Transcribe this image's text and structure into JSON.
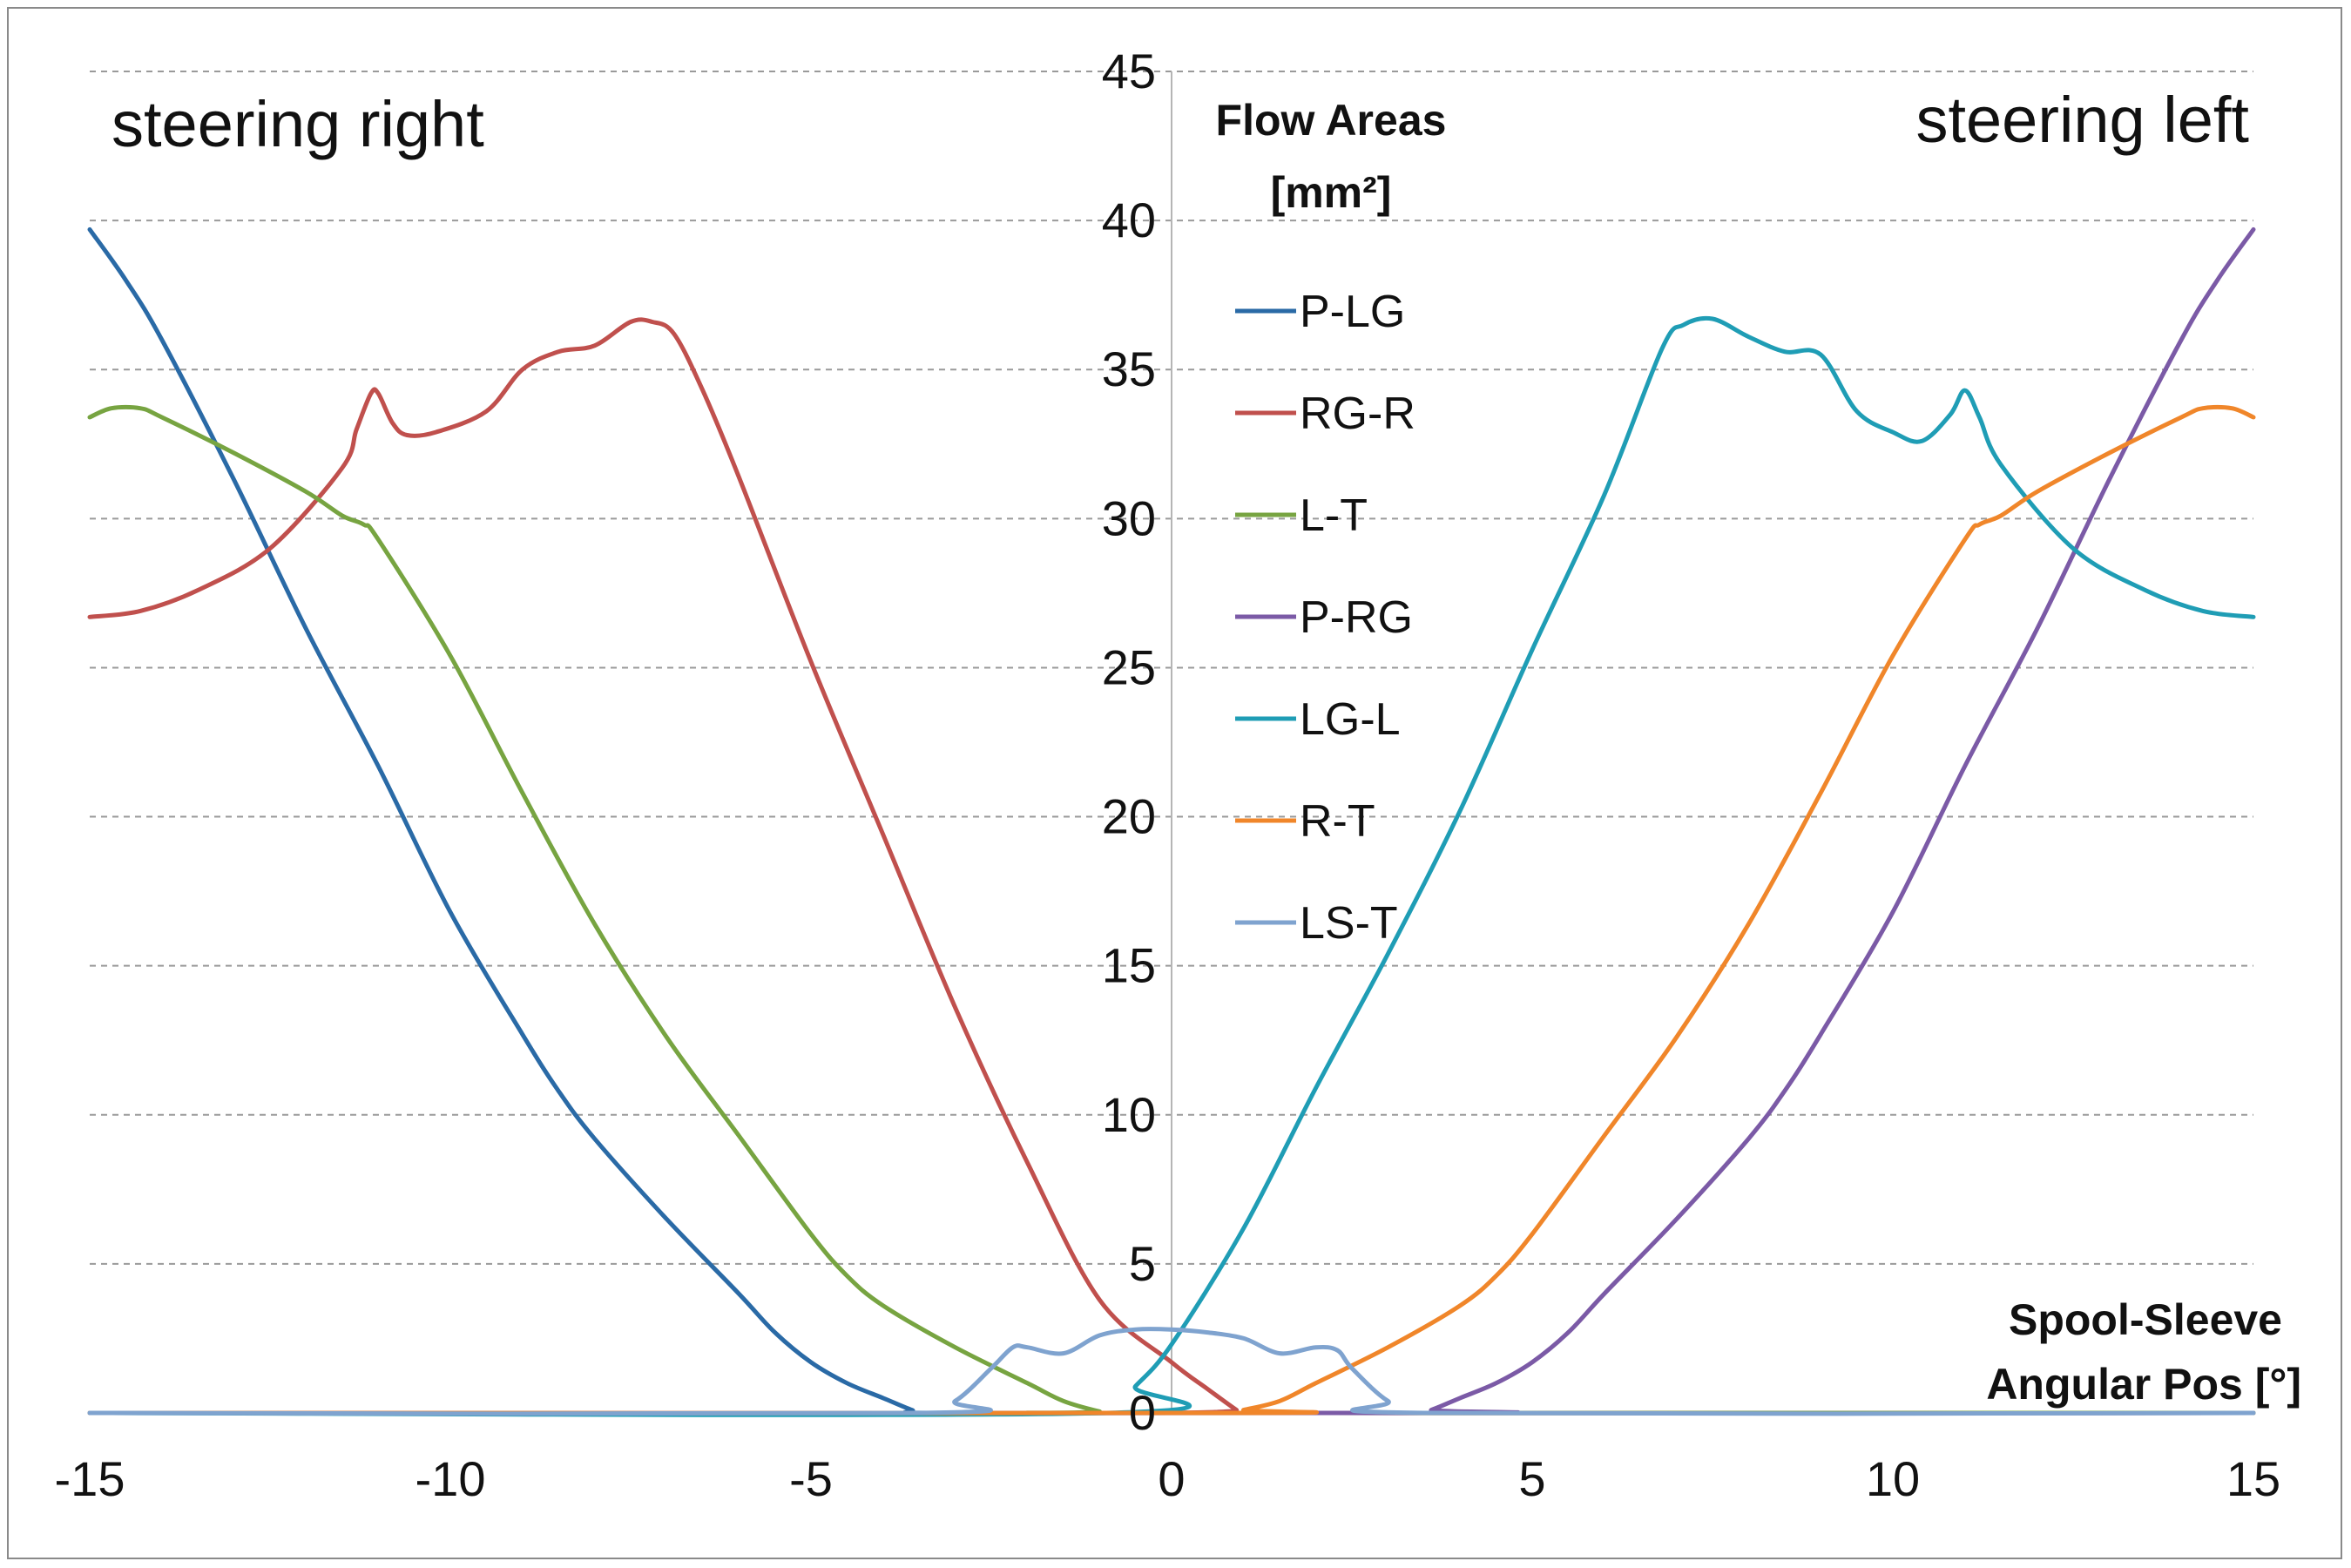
{
  "chart_data": {
    "type": "line",
    "title": "",
    "xlabel": [
      "Spool-Sleeve",
      "Angular Pos [°]"
    ],
    "ylabel": [
      "Flow Areas",
      "[mm²]"
    ],
    "xlim": [
      -15,
      15
    ],
    "ylim": [
      0,
      45
    ],
    "xticks": [
      -15,
      -10,
      -5,
      0,
      5,
      10,
      15
    ],
    "yticks": [
      0,
      5,
      10,
      15,
      20,
      25,
      30,
      35,
      40,
      45
    ],
    "grid": "horizontal dashed",
    "annotations": {
      "left": "steering right",
      "right": "steering left"
    },
    "legend_position": "center",
    "series": [
      {
        "name": "P-LG",
        "color": "#2a6aa6",
        "points": [
          [
            -15,
            39.7
          ],
          [
            -14.5,
            38
          ],
          [
            -14,
            36
          ],
          [
            -13,
            31.3
          ],
          [
            -12,
            26.3
          ],
          [
            -11,
            21.7
          ],
          [
            -10,
            16.8
          ],
          [
            -9,
            12.7
          ],
          [
            -8.5,
            10.8
          ],
          [
            -8,
            9.2
          ],
          [
            -7,
            6.5
          ],
          [
            -6,
            4.0
          ],
          [
            -5.5,
            2.7
          ],
          [
            -5,
            1.7
          ],
          [
            -4.5,
            1.0
          ],
          [
            -4,
            0.5
          ],
          [
            -3.6,
            0.1
          ],
          [
            -3.4,
            0
          ],
          [
            0,
            0
          ],
          [
            15,
            0
          ]
        ]
      },
      {
        "name": "RG-R",
        "color": "#c0504d",
        "points": [
          [
            -15,
            26.7
          ],
          [
            -14.3,
            26.9
          ],
          [
            -13.5,
            27.6
          ],
          [
            -12.5,
            29.0
          ],
          [
            -11.5,
            31.7
          ],
          [
            -11.3,
            33.0
          ],
          [
            -11.1,
            34.2
          ],
          [
            -11.0,
            34.2
          ],
          [
            -10.8,
            33.2
          ],
          [
            -10.6,
            32.8
          ],
          [
            -10.2,
            32.9
          ],
          [
            -9.5,
            33.6
          ],
          [
            -9.0,
            35.0
          ],
          [
            -8.5,
            35.6
          ],
          [
            -8.0,
            35.8
          ],
          [
            -7.5,
            36.6
          ],
          [
            -7.2,
            36.6
          ],
          [
            -6.9,
            36.2
          ],
          [
            -6.5,
            34.3
          ],
          [
            -6,
            31.4
          ],
          [
            -5,
            25.2
          ],
          [
            -4,
            19.4
          ],
          [
            -3,
            13.6
          ],
          [
            -2,
            8.4
          ],
          [
            -1,
            3.8
          ],
          [
            0,
            1.7
          ],
          [
            0.5,
            0.8
          ],
          [
            0.9,
            0.1
          ],
          [
            1.0,
            0
          ],
          [
            15,
            0
          ]
        ]
      },
      {
        "name": "L-T",
        "color": "#77a441",
        "points": [
          [
            -15,
            33.4
          ],
          [
            -14.7,
            33.7
          ],
          [
            -14.3,
            33.7
          ],
          [
            -14,
            33.4
          ],
          [
            -13,
            32.2
          ],
          [
            -12,
            30.9
          ],
          [
            -11.5,
            30.1
          ],
          [
            -11.2,
            29.8
          ],
          [
            -11,
            29.3
          ],
          [
            -10,
            25.4
          ],
          [
            -9,
            20.8
          ],
          [
            -8,
            16.4
          ],
          [
            -7,
            12.6
          ],
          [
            -6,
            9.3
          ],
          [
            -5,
            6.0
          ],
          [
            -4.5,
            4.6
          ],
          [
            -4,
            3.6
          ],
          [
            -3,
            2.2
          ],
          [
            -2,
            1.0
          ],
          [
            -1.5,
            0.4
          ],
          [
            -1,
            0.05
          ],
          [
            -0.8,
            0
          ],
          [
            15,
            0
          ]
        ]
      },
      {
        "name": "P-RG",
        "color": "#7b5aa6",
        "points": [
          [
            -15,
            0
          ],
          [
            3.4,
            0
          ],
          [
            3.6,
            0.1
          ],
          [
            4,
            0.5
          ],
          [
            4.5,
            1.0
          ],
          [
            5,
            1.7
          ],
          [
            5.5,
            2.7
          ],
          [
            6,
            4.0
          ],
          [
            7,
            6.5
          ],
          [
            8,
            9.2
          ],
          [
            8.5,
            10.8
          ],
          [
            9,
            12.7
          ],
          [
            10,
            16.8
          ],
          [
            11,
            21.7
          ],
          [
            12,
            26.3
          ],
          [
            13,
            31.3
          ],
          [
            14,
            36
          ],
          [
            14.5,
            38
          ],
          [
            15,
            39.7
          ]
        ]
      },
      {
        "name": "LG-L",
        "color": "#1f9db5",
        "points": [
          [
            -15,
            0
          ],
          [
            -0.9,
            0
          ],
          [
            -0.5,
            0.9
          ],
          [
            0,
            2.3
          ],
          [
            1,
            6.2
          ],
          [
            2,
            10.9
          ],
          [
            3,
            15.4
          ],
          [
            4,
            20.2
          ],
          [
            5,
            25.6
          ],
          [
            6,
            30.8
          ],
          [
            6.8,
            35.7
          ],
          [
            7.1,
            36.5
          ],
          [
            7.5,
            36.7
          ],
          [
            8,
            36.1
          ],
          [
            8.5,
            35.6
          ],
          [
            9,
            35.5
          ],
          [
            9.5,
            33.6
          ],
          [
            10,
            32.9
          ],
          [
            10.4,
            32.6
          ],
          [
            10.8,
            33.5
          ],
          [
            11.0,
            34.3
          ],
          [
            11.2,
            33.4
          ],
          [
            11.5,
            31.8
          ],
          [
            12.5,
            29.0
          ],
          [
            13.5,
            27.6
          ],
          [
            14.3,
            26.9
          ],
          [
            15,
            26.7
          ]
        ]
      },
      {
        "name": "R-T",
        "color": "#f0862a",
        "points": [
          [
            -15,
            0
          ],
          [
            0.8,
            0
          ],
          [
            1,
            0.1
          ],
          [
            1.5,
            0.4
          ],
          [
            2,
            1.0
          ],
          [
            3,
            2.2
          ],
          [
            4,
            3.6
          ],
          [
            4.5,
            4.6
          ],
          [
            5,
            6.0
          ],
          [
            6,
            9.3
          ],
          [
            7,
            12.6
          ],
          [
            8,
            16.4
          ],
          [
            9,
            20.8
          ],
          [
            10,
            25.4
          ],
          [
            11,
            29.3
          ],
          [
            11.2,
            29.8
          ],
          [
            11.5,
            30.1
          ],
          [
            12,
            30.9
          ],
          [
            13,
            32.2
          ],
          [
            14,
            33.4
          ],
          [
            14.3,
            33.7
          ],
          [
            14.7,
            33.7
          ],
          [
            15,
            33.4
          ]
        ]
      },
      {
        "name": "LS-T",
        "color": "#7fa3cf",
        "points": [
          [
            -15,
            0
          ],
          [
            -3.5,
            0
          ],
          [
            -3,
            0.4
          ],
          [
            -2.5,
            1.5
          ],
          [
            -2.2,
            2.2
          ],
          [
            -2,
            2.2
          ],
          [
            -1.5,
            2.0
          ],
          [
            -1,
            2.6
          ],
          [
            -0.5,
            2.8
          ],
          [
            0,
            2.8
          ],
          [
            0.5,
            2.7
          ],
          [
            1,
            2.5
          ],
          [
            1.5,
            2.0
          ],
          [
            2,
            2.2
          ],
          [
            2.3,
            2.1
          ],
          [
            2.5,
            1.5
          ],
          [
            3,
            0.4
          ],
          [
            3.5,
            0
          ],
          [
            15,
            0
          ]
        ]
      }
    ]
  }
}
